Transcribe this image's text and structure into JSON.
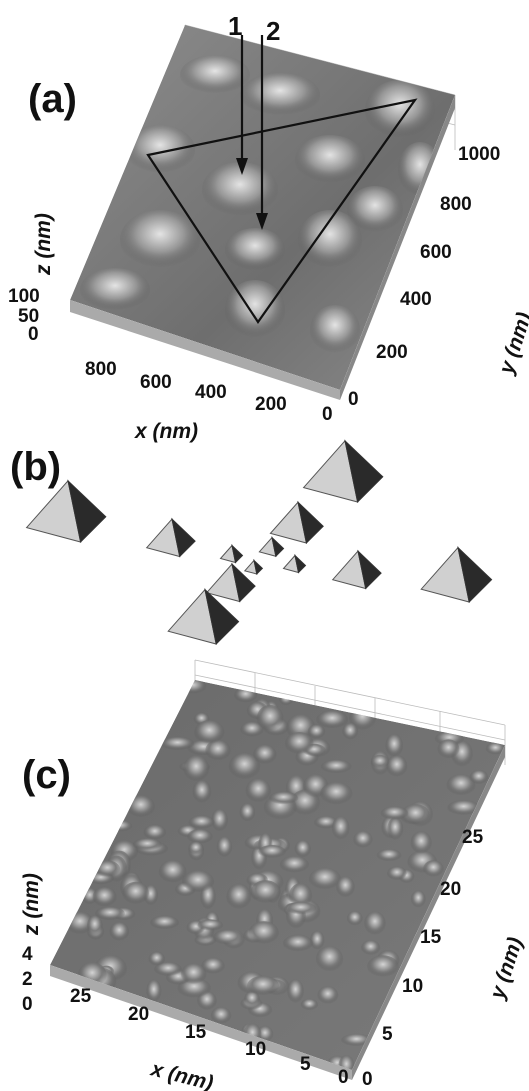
{
  "panels": {
    "a": {
      "label": "(a)",
      "arrow_labels": [
        "1",
        "2"
      ],
      "x_axis_label": "x (nm)",
      "y_axis_label": "y (nm)",
      "z_axis_label": "z (nm)",
      "x_ticks": [
        "800",
        "600",
        "400",
        "200",
        "0"
      ],
      "y_ticks": [
        "0",
        "200",
        "400",
        "600",
        "800",
        "1000"
      ],
      "z_ticks": [
        "0",
        "50",
        "100"
      ]
    },
    "b": {
      "label": "(b)"
    },
    "c": {
      "label": "(c)",
      "x_axis_label": "x (nm)",
      "y_axis_label": "y (nm)",
      "z_axis_label": "z (nm)",
      "x_ticks": [
        "25",
        "20",
        "15",
        "10",
        "5",
        "0"
      ],
      "y_ticks": [
        "0",
        "5",
        "10",
        "15",
        "20",
        "25"
      ],
      "z_ticks": [
        "0",
        "2",
        "4"
      ]
    }
  }
}
